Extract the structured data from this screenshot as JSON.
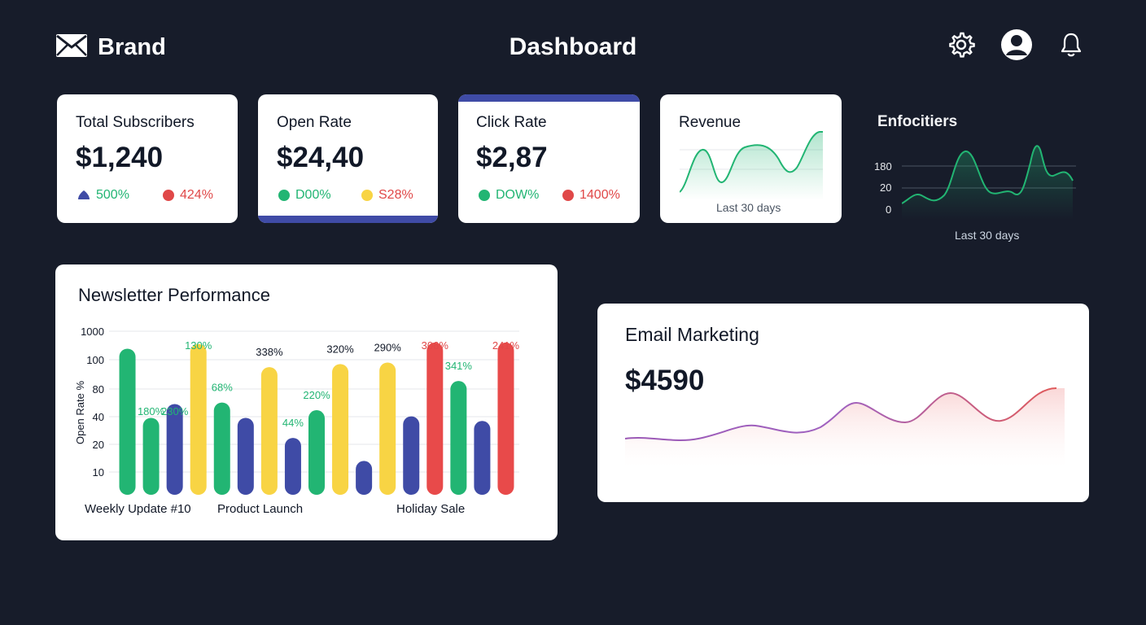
{
  "header": {
    "brand": "Brand",
    "title": "Dashboard",
    "icons": [
      "mail-icon",
      "gear-icon",
      "avatar-icon",
      "bell-icon"
    ]
  },
  "stats": [
    {
      "title": "Total Subscribers",
      "value": "$1,240",
      "delta1": "500%",
      "delta2": "424%",
      "delta1_color": "#22b573",
      "delta2_color": "#e04848"
    },
    {
      "title": "Open Rate",
      "value": "$24,40",
      "delta1": "D00%",
      "delta2": "S28%",
      "delta1_color": "#22b573",
      "delta2_color": "#e04848"
    },
    {
      "title": "Click Rate",
      "value": "$2,87",
      "delta1": "DOW%",
      "delta2": "1400%",
      "delta1_color": "#22b573",
      "delta2_color": "#e04848"
    }
  ],
  "revenue": {
    "title": "Revenue",
    "caption": "Last 30 days"
  },
  "dark_widget": {
    "title": "Enfocitiers",
    "ticks": [
      "180",
      "20",
      "0"
    ],
    "caption": "Last 30 days"
  },
  "performance": {
    "title": "Newsletter Performance",
    "chart_data": {
      "type": "bar",
      "ylabel": "Open Rate %",
      "y_ticks": [
        "1000",
        "100",
        "80",
        "40",
        "20",
        "10"
      ],
      "categories": [
        "Weekly Update #10",
        "Product Launch",
        "Holiday Sale"
      ],
      "bars": [
        {
          "value": 95,
          "color": "#22b573",
          "label": ""
        },
        {
          "value": 50,
          "color": "#22b573",
          "label": "180%"
        },
        {
          "value": 59,
          "color": "#3f4ba6",
          "label": "230%"
        },
        {
          "value": 98,
          "color": "#f8d444",
          "label": "130%"
        },
        {
          "value": 60,
          "color": "#22b573",
          "label": "68%"
        },
        {
          "value": 50,
          "color": "#3f4ba6",
          "label": ""
        },
        {
          "value": 83,
          "color": "#f8d444",
          "label": "338%"
        },
        {
          "value": 37,
          "color": "#3f4ba6",
          "label": "44%"
        },
        {
          "value": 55,
          "color": "#22b573",
          "label": "220%"
        },
        {
          "value": 85,
          "color": "#f8d444",
          "label": "320%"
        },
        {
          "value": 22,
          "color": "#3f4ba6",
          "label": ""
        },
        {
          "value": 86,
          "color": "#f8d444",
          "label": "290%"
        },
        {
          "value": 51,
          "color": "#3f4ba6",
          "label": ""
        },
        {
          "value": 99,
          "color": "#e84a4a",
          "label": "306%"
        },
        {
          "value": 74,
          "color": "#22b573",
          "label": "341%"
        },
        {
          "value": 48,
          "color": "#3f4ba6",
          "label": ""
        },
        {
          "value": 99,
          "color": "#e84a4a",
          "label": "241%"
        }
      ],
      "label_colors": {
        "green": "#22b573",
        "dark": "#111827",
        "red": "#e04848"
      }
    }
  },
  "email_marketing": {
    "title": "Email Marketing",
    "value": "$4590"
  }
}
